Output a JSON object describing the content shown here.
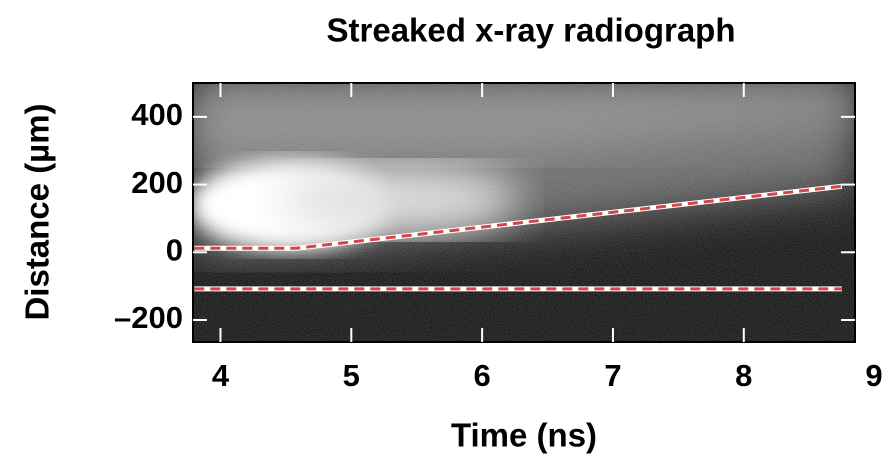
{
  "chart_data": {
    "type": "image",
    "title": "Streaked x-ray radiograph",
    "x_label": "Time (ns)",
    "y_label": "Distance (µm)",
    "xlim": [
      3.79,
      8.85
    ],
    "ylim": [
      -265,
      500
    ],
    "xticks": [
      4,
      5,
      6,
      7,
      8,
      9
    ],
    "yticks": [
      {
        "value": -200,
        "label": "–200"
      },
      0,
      200,
      400
    ],
    "series": [
      {
        "color": "#d9434b",
        "x": [
          3.8,
          4.58,
          8.75
        ],
        "values": [
          12,
          12,
          195
        ]
      },
      {
        "color": "#d9434b",
        "x": [
          3.8,
          8.75
        ],
        "values": [
          -108,
          -108
        ]
      }
    ]
  }
}
